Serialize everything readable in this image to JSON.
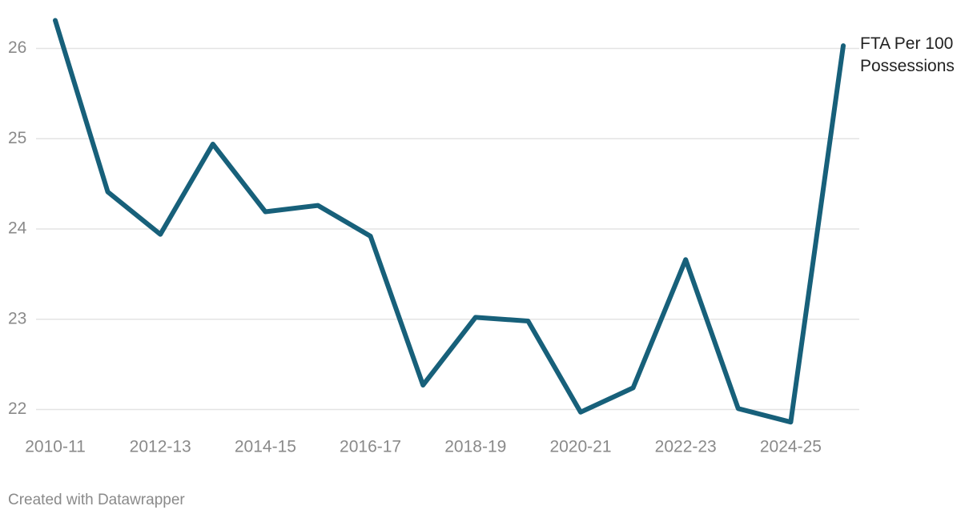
{
  "chart_data": {
    "type": "line",
    "categories": [
      "2010-11",
      null,
      "2012-13",
      null,
      "2014-15",
      null,
      "2016-17",
      null,
      "2018-19",
      null,
      "2020-21",
      null,
      "2022-23",
      null,
      "2024-25",
      null
    ],
    "series": [
      {
        "name": "FTA Per 100 Possessions",
        "color": "#17607a",
        "values": [
          26.31,
          24.41,
          23.94,
          24.94,
          24.19,
          24.26,
          23.92,
          22.27,
          23.02,
          22.98,
          21.97,
          22.24,
          23.66,
          22.01,
          21.86,
          26.03
        ]
      }
    ],
    "ylim": [
      21.8,
      26.35
    ],
    "yticks": [
      22,
      23,
      24,
      25,
      26
    ],
    "grid": true,
    "footer": "Created with Datawrapper"
  }
}
